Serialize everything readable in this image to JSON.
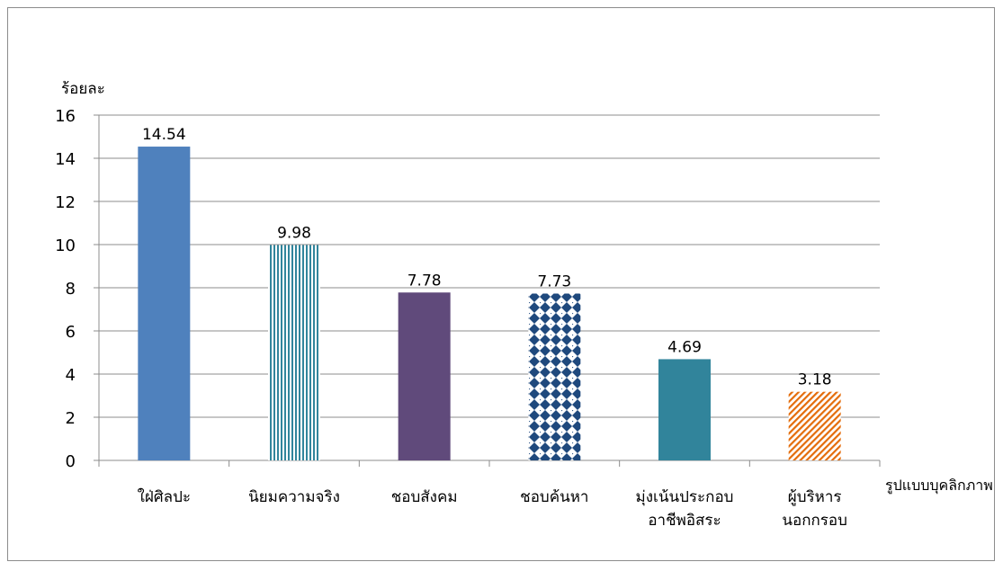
{
  "chart_data": {
    "type": "bar",
    "title": "",
    "ylabel": "ร้อยละ",
    "xlabel": "รูปแบบบุคลิกภาพ",
    "ylim": [
      0,
      16
    ],
    "yticks": [
      0,
      2,
      4,
      6,
      8,
      10,
      12,
      14,
      16
    ],
    "grid": true,
    "categories": [
      [
        "ใฝ่ศิลปะ"
      ],
      [
        "นิยมความจริง"
      ],
      [
        "ชอบสังคม"
      ],
      [
        "ชอบค้นหา"
      ],
      [
        "มุ่งเน้นประกอบ",
        "อาชีพอิสระ"
      ],
      [
        "ผู้บริหาร",
        "นอกกรอบ"
      ]
    ],
    "values": [
      14.54,
      9.98,
      7.78,
      7.73,
      4.69,
      3.18
    ],
    "data_labels": [
      "14.54",
      "9.98",
      "7.78",
      "7.73",
      "4.69",
      "3.18"
    ],
    "bar_styles": [
      {
        "fill": "solid",
        "color": "#4f81bd"
      },
      {
        "fill": "vertical-stripes",
        "color": "#31859c"
      },
      {
        "fill": "solid",
        "color": "#604a7b"
      },
      {
        "fill": "diamonds",
        "color": "#1f497d"
      },
      {
        "fill": "solid",
        "color": "#31849b"
      },
      {
        "fill": "diagonal-stripes",
        "color": "#e46c0a"
      }
    ]
  }
}
